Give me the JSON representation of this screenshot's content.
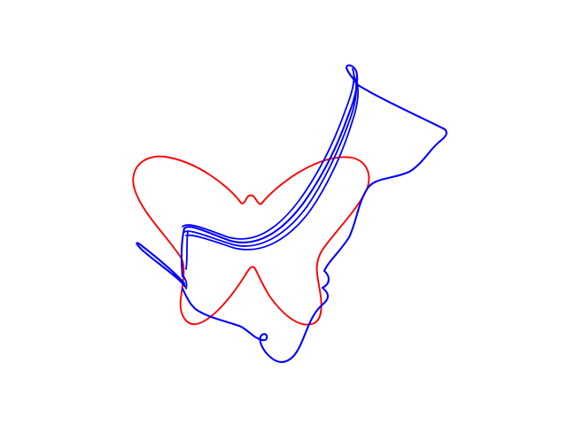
{
  "figure": {
    "description_text": "",
    "curves": [
      {
        "name": "red-curve",
        "color": "#ff0000"
      },
      {
        "name": "blue-curve",
        "color": "#0000ff"
      }
    ]
  }
}
